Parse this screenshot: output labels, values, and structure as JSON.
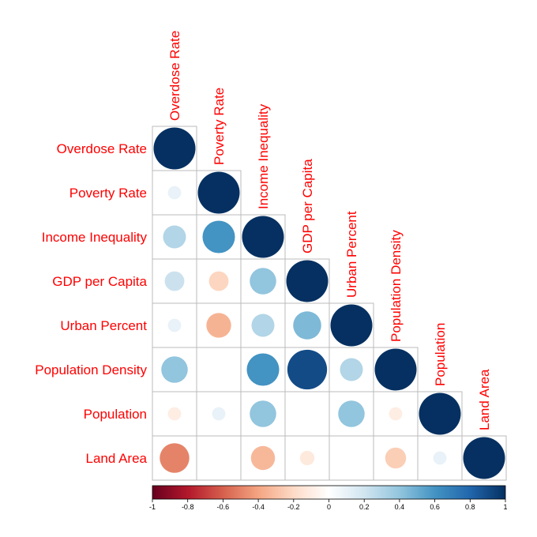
{
  "chart_data": {
    "type": "heatmap",
    "variables": [
      "Overdose Rate",
      "Poverty Rate",
      "Income Inequality",
      "GDP per Capita",
      "Urban Percent",
      "Population Density",
      "Population",
      "Land Area"
    ],
    "matrix": [
      [
        1.0,
        null,
        null,
        null,
        null,
        null,
        null,
        null
      ],
      [
        0.1,
        1.0,
        null,
        null,
        null,
        null,
        null,
        null
      ],
      [
        0.3,
        0.6,
        1.0,
        null,
        null,
        null,
        null,
        null
      ],
      [
        0.22,
        -0.22,
        0.4,
        1.0,
        null,
        null,
        null,
        null
      ],
      [
        0.1,
        -0.35,
        0.3,
        0.45,
        1.0,
        null,
        null,
        null
      ],
      [
        0.4,
        0.0,
        0.6,
        0.9,
        0.3,
        1.0,
        null,
        null
      ],
      [
        -0.1,
        0.1,
        0.4,
        0.0,
        0.4,
        -0.1,
        1.0,
        null
      ],
      [
        -0.5,
        0.0,
        -0.33,
        -0.12,
        0.0,
        -0.25,
        0.1,
        1.0
      ]
    ],
    "colorbar": {
      "min": -1,
      "max": 1,
      "ticks": [
        "-1",
        "-0.8",
        "-0.6",
        "-0.4",
        "-0.2",
        "0",
        "0.2",
        "0.4",
        "0.6",
        "0.8",
        "1"
      ]
    },
    "label_color": "#ff0000",
    "grid_color": "#bbbbbb",
    "colors": [
      "#67001f",
      "#b2182b",
      "#d6604d",
      "#f4a582",
      "#fddbc7",
      "#ffffff",
      "#d1e5f0",
      "#92c5de",
      "#4393c3",
      "#2166ac",
      "#053061"
    ]
  }
}
